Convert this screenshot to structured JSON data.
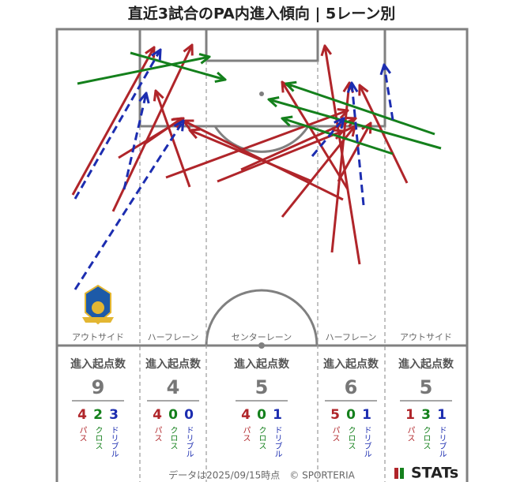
{
  "title": "直近3試合のPA内進入傾向 | 5レーン別",
  "count_labels": [
    "パス",
    "クロス",
    "ドリブル"
  ],
  "lanes": [
    {
      "name": "アウトサイド",
      "heading": "進入起点数",
      "total": 9,
      "counts": [
        4,
        2,
        3
      ]
    },
    {
      "name": "ハーフレーン",
      "heading": "進入起点数",
      "total": 4,
      "counts": [
        4,
        0,
        0
      ]
    },
    {
      "name": "センターレーン",
      "heading": "進入起点数",
      "total": 5,
      "counts": [
        4,
        0,
        1
      ]
    },
    {
      "name": "ハーフレーン",
      "heading": "進入起点数",
      "total": 6,
      "counts": [
        5,
        0,
        1
      ]
    },
    {
      "name": "アウトサイド",
      "heading": "進入起点数",
      "total": 5,
      "counts": [
        1,
        3,
        1
      ]
    }
  ],
  "footer": {
    "note": "データは2025/09/15時点　© SPORTERIA",
    "logo": "STATs"
  }
}
